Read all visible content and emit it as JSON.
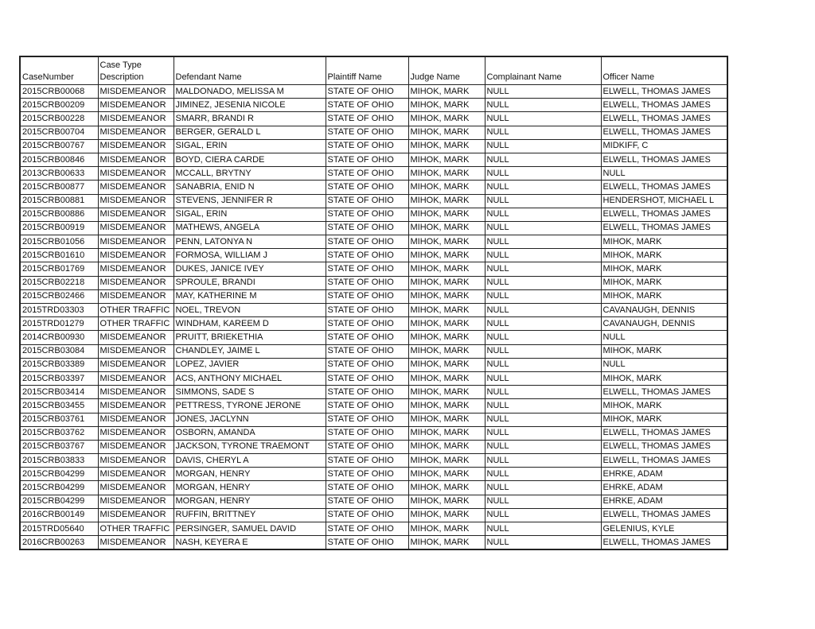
{
  "headers": [
    "CaseNumber",
    "Case Type Description",
    "Defendant Name",
    "Plaintiff Name",
    "Judge Name",
    "Complainant Name",
    "Officer Name"
  ],
  "rows": [
    [
      "2015CRB00068",
      "MISDEMEANOR",
      "MALDONADO, MELISSA M",
      "STATE OF OHIO",
      "MIHOK, MARK",
      "NULL",
      "ELWELL, THOMAS JAMES"
    ],
    [
      "2015CRB00209",
      "MISDEMEANOR",
      "JIMINEZ, JESENIA NICOLE",
      "STATE OF OHIO",
      "MIHOK, MARK",
      "NULL",
      "ELWELL, THOMAS JAMES"
    ],
    [
      "2015CRB00228",
      "MISDEMEANOR",
      "SMARR, BRANDI R",
      "STATE OF OHIO",
      "MIHOK, MARK",
      "NULL",
      "ELWELL, THOMAS JAMES"
    ],
    [
      "2015CRB00704",
      "MISDEMEANOR",
      "BERGER, GERALD L",
      "STATE OF OHIO",
      "MIHOK, MARK",
      "NULL",
      "ELWELL, THOMAS JAMES"
    ],
    [
      "2015CRB00767",
      "MISDEMEANOR",
      "SIGAL, ERIN",
      "STATE OF OHIO",
      "MIHOK, MARK",
      "NULL",
      "MIDKIFF, C"
    ],
    [
      "2015CRB00846",
      "MISDEMEANOR",
      "BOYD, CIERA CARDE",
      "STATE OF OHIO",
      "MIHOK, MARK",
      "NULL",
      "ELWELL, THOMAS JAMES"
    ],
    [
      "2013CRB00633",
      "MISDEMEANOR",
      "MCCALL, BRYTNY",
      "STATE OF OHIO",
      "MIHOK, MARK",
      "NULL",
      "NULL"
    ],
    [
      "2015CRB00877",
      "MISDEMEANOR",
      "SANABRIA, ENID N",
      "STATE OF OHIO",
      "MIHOK, MARK",
      "NULL",
      "ELWELL, THOMAS JAMES"
    ],
    [
      "2015CRB00881",
      "MISDEMEANOR",
      "STEVENS, JENNIFER R",
      "STATE OF OHIO",
      "MIHOK, MARK",
      "NULL",
      "HENDERSHOT, MICHAEL L"
    ],
    [
      "2015CRB00886",
      "MISDEMEANOR",
      "SIGAL, ERIN",
      "STATE OF OHIO",
      "MIHOK, MARK",
      "NULL",
      "ELWELL, THOMAS JAMES"
    ],
    [
      "2015CRB00919",
      "MISDEMEANOR",
      "MATHEWS, ANGELA",
      "STATE OF OHIO",
      "MIHOK, MARK",
      "NULL",
      "ELWELL, THOMAS JAMES"
    ],
    [
      "2015CRB01056",
      "MISDEMEANOR",
      "PENN, LATONYA N",
      "STATE OF OHIO",
      "MIHOK, MARK",
      "NULL",
      "MIHOK, MARK"
    ],
    [
      "2015CRB01610",
      "MISDEMEANOR",
      "FORMOSA, WILLIAM J",
      "STATE OF OHIO",
      "MIHOK, MARK",
      "NULL",
      "MIHOK, MARK"
    ],
    [
      "2015CRB01769",
      "MISDEMEANOR",
      "DUKES, JANICE IVEY",
      "STATE OF OHIO",
      "MIHOK, MARK",
      "NULL",
      "MIHOK, MARK"
    ],
    [
      "2015CRB02218",
      "MISDEMEANOR",
      "SPROULE, BRANDI",
      "STATE OF OHIO",
      "MIHOK, MARK",
      "NULL",
      "MIHOK, MARK"
    ],
    [
      "2015CRB02466",
      "MISDEMEANOR",
      "MAY, KATHERINE M",
      "STATE OF OHIO",
      "MIHOK, MARK",
      "NULL",
      "MIHOK, MARK"
    ],
    [
      "2015TRD03303",
      "OTHER TRAFFIC",
      "NOEL, TREVON",
      "STATE OF OHIO",
      "MIHOK, MARK",
      "NULL",
      "CAVANAUGH, DENNIS"
    ],
    [
      "2015TRD01279",
      "OTHER TRAFFIC",
      "WINDHAM, KAREEM D",
      "STATE OF OHIO",
      "MIHOK, MARK",
      "NULL",
      "CAVANAUGH, DENNIS"
    ],
    [
      "2014CRB00930",
      "MISDEMEANOR",
      "PRUITT, BRIEKETHIA",
      "STATE OF OHIO",
      "MIHOK, MARK",
      "NULL",
      "NULL"
    ],
    [
      "2015CRB03084",
      "MISDEMEANOR",
      "CHANDLEY, JAIME L",
      "STATE OF OHIO",
      "MIHOK, MARK",
      "NULL",
      "MIHOK, MARK"
    ],
    [
      "2015CRB03389",
      "MISDEMEANOR",
      "LOPEZ, JAVIER",
      "STATE OF OHIO",
      "MIHOK, MARK",
      "NULL",
      "NULL"
    ],
    [
      "2015CRB03397",
      "MISDEMEANOR",
      "ACS, ANTHONY MICHAEL",
      "STATE OF OHIO",
      "MIHOK, MARK",
      "NULL",
      "MIHOK, MARK"
    ],
    [
      "2015CRB03414",
      "MISDEMEANOR",
      "SIMMONS, SADE S",
      "STATE OF OHIO",
      "MIHOK, MARK",
      "NULL",
      "ELWELL, THOMAS JAMES"
    ],
    [
      "2015CRB03455",
      "MISDEMEANOR",
      "PETTRESS, TYRONE JERONE",
      "STATE OF OHIO",
      "MIHOK, MARK",
      "NULL",
      "MIHOK, MARK"
    ],
    [
      "2015CRB03761",
      "MISDEMEANOR",
      "JONES, JACLYNN",
      "STATE OF OHIO",
      "MIHOK, MARK",
      "NULL",
      "MIHOK, MARK"
    ],
    [
      "2015CRB03762",
      "MISDEMEANOR",
      "OSBORN, AMANDA",
      "STATE OF OHIO",
      "MIHOK, MARK",
      "NULL",
      "ELWELL, THOMAS JAMES"
    ],
    [
      "2015CRB03767",
      "MISDEMEANOR",
      "JACKSON, TYRONE TRAEMONT",
      "STATE OF OHIO",
      "MIHOK, MARK",
      "NULL",
      "ELWELL, THOMAS JAMES"
    ],
    [
      "2015CRB03833",
      "MISDEMEANOR",
      "DAVIS, CHERYL A",
      "STATE OF OHIO",
      "MIHOK, MARK",
      "NULL",
      "ELWELL, THOMAS JAMES"
    ],
    [
      "2015CRB04299",
      "MISDEMEANOR",
      "MORGAN, HENRY",
      "STATE OF OHIO",
      "MIHOK, MARK",
      "NULL",
      "EHRKE, ADAM"
    ],
    [
      "2015CRB04299",
      "MISDEMEANOR",
      "MORGAN, HENRY",
      "STATE OF OHIO",
      "MIHOK, MARK",
      "NULL",
      "EHRKE, ADAM"
    ],
    [
      "2015CRB04299",
      "MISDEMEANOR",
      "MORGAN, HENRY",
      "STATE OF OHIO",
      "MIHOK, MARK",
      "NULL",
      "EHRKE, ADAM"
    ],
    [
      "2016CRB00149",
      "MISDEMEANOR",
      "RUFFIN, BRITTNEY",
      "STATE OF OHIO",
      "MIHOK, MARK",
      "NULL",
      "ELWELL, THOMAS JAMES"
    ],
    [
      "2015TRD05640",
      "OTHER TRAFFIC",
      "PERSINGER, SAMUEL DAVID",
      "STATE OF OHIO",
      "MIHOK, MARK",
      "NULL",
      "GELENIUS, KYLE"
    ],
    [
      "2016CRB00263",
      "MISDEMEANOR",
      "NASH, KEYERA E",
      "STATE OF OHIO",
      "MIHOK, MARK",
      "NULL",
      "ELWELL, THOMAS JAMES"
    ]
  ]
}
